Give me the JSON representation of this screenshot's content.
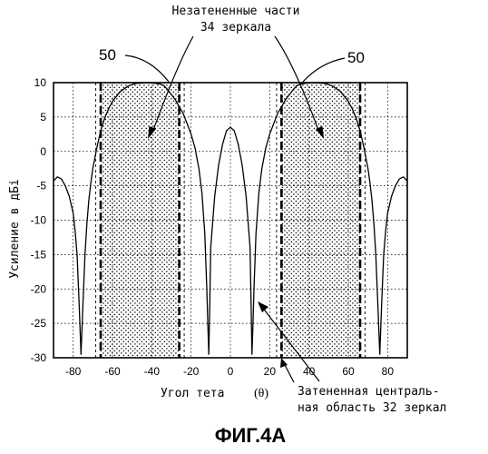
{
  "chart_data": {
    "type": "line",
    "title": "",
    "xlabel": "Угол тета",
    "xlabel_symbol": "(θ)",
    "ylabel": "Усиление в дБі",
    "xlim": [
      -90,
      90
    ],
    "ylim": [
      -30,
      10
    ],
    "x_ticks": [
      -80,
      -60,
      -40,
      -20,
      0,
      20,
      40,
      60,
      80
    ],
    "y_ticks": [
      10,
      5,
      0,
      -5,
      -10,
      -15,
      -20,
      -25,
      -30
    ],
    "grid": true,
    "series": [
      {
        "x": [
          -90,
          -88,
          -86,
          -84,
          -82,
          -80,
          -79,
          -78,
          -77,
          -76,
          -75,
          -74,
          -73,
          -72,
          -71,
          -70,
          -68,
          -66,
          -64,
          -62,
          -60,
          -56,
          -52,
          -48,
          -44,
          -40,
          -36,
          -34,
          -32,
          -28,
          -24,
          -20,
          -18,
          -16,
          -14.5,
          -13,
          -12,
          -11.5,
          -11,
          -10.5,
          -10,
          -8,
          -6,
          -4,
          -2,
          0,
          2,
          4,
          6,
          8,
          10,
          10.5,
          11,
          11.5,
          12,
          13,
          14.5,
          16,
          18,
          20,
          24,
          28,
          32,
          34,
          36,
          40,
          44,
          48,
          52,
          56,
          60,
          62,
          64,
          66,
          68,
          70,
          71,
          72,
          73,
          74,
          75,
          76,
          77,
          78,
          79,
          80,
          82,
          84,
          86,
          88,
          90
        ],
        "y": [
          -4.3,
          -3.7,
          -4,
          -5,
          -6.5,
          -9,
          -11.5,
          -15,
          -22,
          -29.5,
          -22,
          -15,
          -10.5,
          -7,
          -4.5,
          -2.5,
          0.5,
          3,
          4.8,
          6.2,
          7.3,
          8.7,
          9.5,
          9.9,
          9.98,
          9.98,
          9.8,
          9.6,
          9,
          7.5,
          5.5,
          2.5,
          0.5,
          -2.5,
          -6,
          -12,
          -20,
          -25,
          -29.5,
          -22,
          -14,
          -6.5,
          -2,
          1,
          3,
          3.5,
          3,
          1,
          -2,
          -6.5,
          -14,
          -22,
          -29.5,
          -25,
          -20,
          -12,
          -6,
          -2.5,
          0.5,
          2.5,
          5.5,
          7.5,
          9,
          9.6,
          9.8,
          9.98,
          9.98,
          9.9,
          9.5,
          8.7,
          7.3,
          6.2,
          4.8,
          3,
          0.5,
          -2.5,
          -4.5,
          -7,
          -10.5,
          -15,
          -22,
          -29.5,
          -22,
          -15,
          -11.5,
          -9,
          -6.5,
          -5,
          -4,
          -3.7,
          -4.3
        ]
      }
    ],
    "vertical_lines": {
      "dashed_thick": [
        -66,
        -26,
        26,
        66
      ],
      "dashed_thin": [
        -68.5,
        -23.5,
        23.5,
        68.5
      ]
    },
    "shaded_regions": [
      [
        -66,
        -26
      ],
      [
        26,
        66
      ]
    ],
    "annotations": {
      "top_line1": "Незатененные части",
      "top_line2": "34 зеркала",
      "ref_left": "50",
      "ref_right": "50",
      "bottom_line1": "Затененная централь-",
      "bottom_line2": "ная область 32 зеркал"
    },
    "figure_label": "ФИГ.4А"
  }
}
